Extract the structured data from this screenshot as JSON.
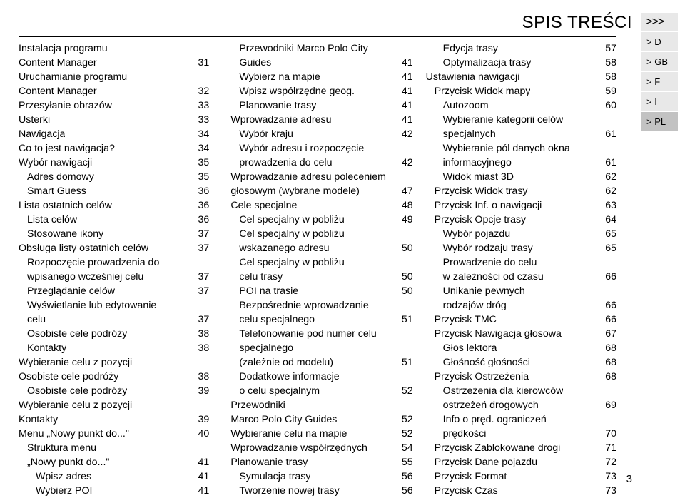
{
  "header": "SPIS TREŚCI",
  "lang_arrow": ">>>",
  "langs": [
    {
      "label": "> D",
      "active": false
    },
    {
      "label": "> GB",
      "active": false
    },
    {
      "label": "> F",
      "active": false
    },
    {
      "label": "> I",
      "active": false
    },
    {
      "label": "> PL",
      "active": true
    }
  ],
  "page_number": "3",
  "col1": [
    {
      "label": "Instalacja programu",
      "num": "",
      "indent": 0
    },
    {
      "label": "Content Manager",
      "num": "31",
      "indent": 0
    },
    {
      "label": "Uruchamianie programu",
      "num": "",
      "indent": 0
    },
    {
      "label": "Content Manager",
      "num": "32",
      "indent": 0
    },
    {
      "label": "Przesyłanie obrazów",
      "num": "33",
      "indent": 0
    },
    {
      "label": "Usterki",
      "num": "33",
      "indent": 0
    },
    {
      "label": "Nawigacja",
      "num": "34",
      "indent": 0
    },
    {
      "label": "Co to jest nawigacja?",
      "num": "34",
      "indent": 0
    },
    {
      "label": "Wybór nawigacji",
      "num": "35",
      "indent": 0
    },
    {
      "label": "Adres domowy",
      "num": "35",
      "indent": 1
    },
    {
      "label": "Smart Guess",
      "num": "36",
      "indent": 1
    },
    {
      "label": "Lista ostatnich celów",
      "num": "36",
      "indent": 0
    },
    {
      "label": "Lista celów",
      "num": "36",
      "indent": 1
    },
    {
      "label": "Stosowane ikony",
      "num": "37",
      "indent": 1
    },
    {
      "label": "Obsługa listy ostatnich celów",
      "num": "37",
      "indent": 0
    },
    {
      "label": "Rozpoczęcie prowadzenia do",
      "num": "",
      "indent": 1
    },
    {
      "label": "wpisanego wcześniej celu",
      "num": "37",
      "indent": 1
    },
    {
      "label": "Przeglądanie celów",
      "num": "37",
      "indent": 1
    },
    {
      "label": "Wyświetlanie lub edytowanie",
      "num": "",
      "indent": 1
    },
    {
      "label": "celu",
      "num": "37",
      "indent": 1
    },
    {
      "label": "Osobiste cele podróży",
      "num": "38",
      "indent": 1
    },
    {
      "label": "Kontakty",
      "num": "38",
      "indent": 1
    },
    {
      "label": "Wybieranie celu z pozycji",
      "num": "",
      "indent": 0
    },
    {
      "label": "Osobiste cele podróży",
      "num": "38",
      "indent": 0
    },
    {
      "label": "Osobiste cele podróży",
      "num": "39",
      "indent": 1
    },
    {
      "label": "Wybieranie celu z pozycji",
      "num": "",
      "indent": 0
    },
    {
      "label": "Kontakty",
      "num": "39",
      "indent": 0
    },
    {
      "label": "Menu „Nowy punkt do...\"",
      "num": "40",
      "indent": 0
    },
    {
      "label": "Struktura menu",
      "num": "",
      "indent": 1
    },
    {
      "label": "„Nowy punkt do...\"",
      "num": "41",
      "indent": 1
    },
    {
      "label": "Wpisz adres",
      "num": "41",
      "indent": 2
    },
    {
      "label": "Wybierz POI",
      "num": "41",
      "indent": 2
    }
  ],
  "col2": [
    {
      "label": "Przewodniki Marco Polo City",
      "num": "",
      "indent": 2
    },
    {
      "label": "Guides",
      "num": "41",
      "indent": 2
    },
    {
      "label": "Wybierz na mapie",
      "num": "41",
      "indent": 2
    },
    {
      "label": "Wpisz współrzędne geog.",
      "num": "41",
      "indent": 2
    },
    {
      "label": "Planowanie trasy",
      "num": "41",
      "indent": 2
    },
    {
      "label": "Wprowadzanie adresu",
      "num": "41",
      "indent": 1
    },
    {
      "label": "Wybór kraju",
      "num": "42",
      "indent": 2
    },
    {
      "label": "Wybór adresu i rozpoczęcie",
      "num": "",
      "indent": 2
    },
    {
      "label": "prowadzenia do celu",
      "num": "42",
      "indent": 2
    },
    {
      "label": "Wprowadzanie adresu poleceniem",
      "num": "",
      "indent": 1
    },
    {
      "label": "głosowym (wybrane modele)",
      "num": "47",
      "indent": 1
    },
    {
      "label": "Cele specjalne",
      "num": "48",
      "indent": 1
    },
    {
      "label": "Cel specjalny w pobliżu",
      "num": "49",
      "indent": 2
    },
    {
      "label": "Cel specjalny w pobliżu",
      "num": "",
      "indent": 2
    },
    {
      "label": "wskazanego adresu",
      "num": "50",
      "indent": 2
    },
    {
      "label": "Cel specjalny w pobliżu",
      "num": "",
      "indent": 2
    },
    {
      "label": "celu trasy",
      "num": "50",
      "indent": 2
    },
    {
      "label": "POI na trasie",
      "num": "50",
      "indent": 2
    },
    {
      "label": "Bezpośrednie wprowadzanie",
      "num": "",
      "indent": 2
    },
    {
      "label": "celu specjalnego",
      "num": "51",
      "indent": 2
    },
    {
      "label": "Telefonowanie pod numer celu",
      "num": "",
      "indent": 2
    },
    {
      "label": "specjalnego",
      "num": "",
      "indent": 2
    },
    {
      "label": "(zależnie od modelu)",
      "num": "51",
      "indent": 2
    },
    {
      "label": "Dodatkowe informacje",
      "num": "",
      "indent": 2
    },
    {
      "label": "o celu specjalnym",
      "num": "52",
      "indent": 2
    },
    {
      "label": "Przewodniki",
      "num": "",
      "indent": 1
    },
    {
      "label": "Marco Polo City Guides",
      "num": "52",
      "indent": 1
    },
    {
      "label": "Wybieranie celu na mapie",
      "num": "52",
      "indent": 1
    },
    {
      "label": "Wprowadzanie współrzędnych",
      "num": "54",
      "indent": 1
    },
    {
      "label": "Planowanie trasy",
      "num": "55",
      "indent": 1
    },
    {
      "label": "Symulacja trasy",
      "num": "56",
      "indent": 2
    },
    {
      "label": "Tworzenie nowej trasy",
      "num": "56",
      "indent": 2
    }
  ],
  "col3": [
    {
      "label": "Edycja trasy",
      "num": "57",
      "indent": 2
    },
    {
      "label": "Optymalizacja trasy",
      "num": "58",
      "indent": 2
    },
    {
      "label": "Ustawienia nawigacji",
      "num": "58",
      "indent": 0
    },
    {
      "label": "Przycisk Widok mapy",
      "num": "59",
      "indent": 1
    },
    {
      "label": "Autozoom",
      "num": "60",
      "indent": 2
    },
    {
      "label": "Wybieranie kategorii celów",
      "num": "",
      "indent": 2
    },
    {
      "label": "specjalnych",
      "num": "61",
      "indent": 2
    },
    {
      "label": "Wybieranie pól danych okna",
      "num": "",
      "indent": 2
    },
    {
      "label": "informacyjnego",
      "num": "61",
      "indent": 2
    },
    {
      "label": "Widok miast 3D",
      "num": "62",
      "indent": 2
    },
    {
      "label": "Przycisk Widok trasy",
      "num": "62",
      "indent": 1
    },
    {
      "label": "Przycisk Inf. o nawigacji",
      "num": "63",
      "indent": 1
    },
    {
      "label": "Przycisk Opcje trasy",
      "num": "64",
      "indent": 1
    },
    {
      "label": "Wybór pojazdu",
      "num": "65",
      "indent": 2
    },
    {
      "label": "Wybór rodzaju trasy",
      "num": "65",
      "indent": 2
    },
    {
      "label": "Prowadzenie do celu",
      "num": "",
      "indent": 2
    },
    {
      "label": "w zależności od czasu",
      "num": "66",
      "indent": 2
    },
    {
      "label": "Unikanie pewnych",
      "num": "",
      "indent": 2
    },
    {
      "label": "rodzajów dróg",
      "num": "66",
      "indent": 2
    },
    {
      "label": "Przycisk TMC",
      "num": "66",
      "indent": 1
    },
    {
      "label": "Przycisk Nawigacja głosowa",
      "num": "67",
      "indent": 1
    },
    {
      "label": "Głos lektora",
      "num": "68",
      "indent": 2
    },
    {
      "label": "Głośność głośności",
      "num": "68",
      "indent": 2
    },
    {
      "label": "Przycisk Ostrzeżenia",
      "num": "68",
      "indent": 1
    },
    {
      "label": "Ostrzeżenia dla kierowców",
      "num": "",
      "indent": 2
    },
    {
      "label": "ostrzeżeń drogowych",
      "num": "69",
      "indent": 2
    },
    {
      "label": "Info o pręd. ograniczeń",
      "num": "",
      "indent": 2
    },
    {
      "label": "prędkości",
      "num": "70",
      "indent": 2
    },
    {
      "label": "Przycisk Zablokowane drogi",
      "num": "71",
      "indent": 1
    },
    {
      "label": "Przycisk Dane pojazdu",
      "num": "72",
      "indent": 1
    },
    {
      "label": "Przycisk Format",
      "num": "73",
      "indent": 1
    },
    {
      "label": "Przycisk Czas",
      "num": "73",
      "indent": 1
    }
  ]
}
